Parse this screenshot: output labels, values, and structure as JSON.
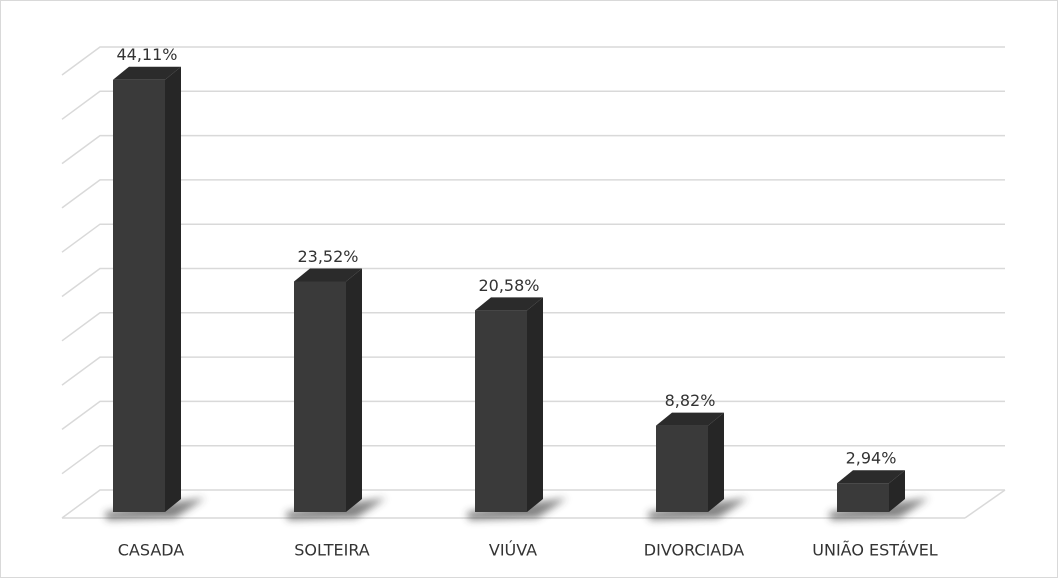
{
  "chart_data": {
    "type": "bar3d",
    "categories": [
      "CASADA",
      "SOLTEIRA",
      "VIÚVA",
      "DIVORCIADA",
      "UNIÃO ESTÁVEL"
    ],
    "values": [
      44.11,
      23.52,
      20.58,
      8.82,
      2.94
    ],
    "value_labels": [
      "44,11%",
      "23,52%",
      "20,58%",
      "8,82%",
      "2,94%"
    ],
    "color": "#3a3a3a",
    "ylim": [
      0,
      50
    ],
    "yticks": [
      0,
      5,
      10,
      15,
      20,
      25,
      30,
      35,
      40,
      45,
      50
    ],
    "grid": true
  }
}
